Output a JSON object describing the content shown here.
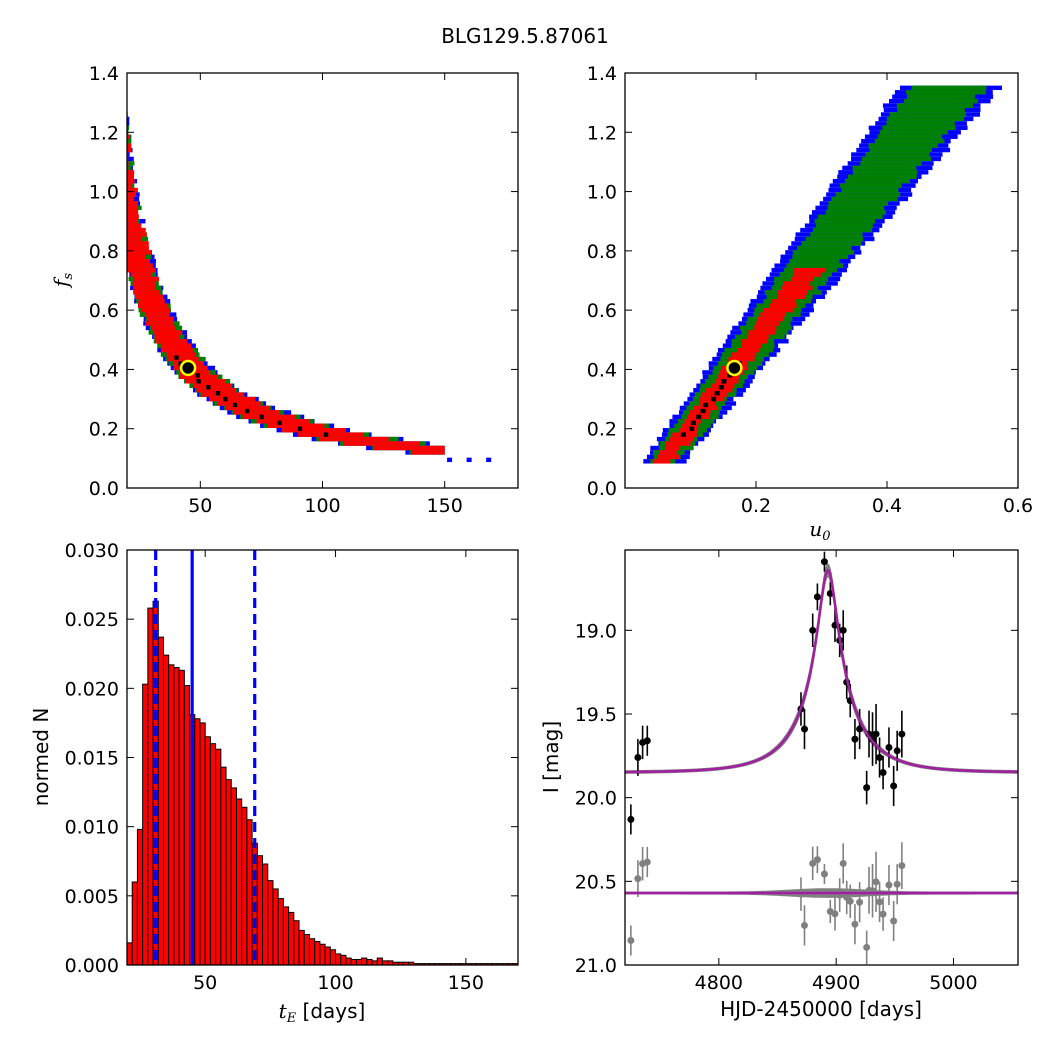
{
  "figure": {
    "title": "BLG129.5.87061",
    "background": "#ffffff"
  },
  "colors": {
    "blue": "#0000ff",
    "green": "#008000",
    "red": "#ff0000",
    "black": "#000000",
    "marker_edge": "#ffff00",
    "model": "#a020a0",
    "band": "#808080",
    "residual": "#808080",
    "hist_fill": "#ff0000"
  },
  "chart_data": [
    {
      "panel": "tE-fs",
      "type": "heatmap",
      "title": "",
      "xlabel": "",
      "ylabel": "f",
      "ylabel_sub": "s",
      "xlim": [
        20,
        180
      ],
      "ylim": [
        0.0,
        1.4
      ],
      "xticks": [
        50,
        100,
        150
      ],
      "yticks": [
        0.0,
        0.2,
        0.4,
        0.6,
        0.8,
        1.0,
        1.2,
        1.4
      ],
      "xtick_labels": [
        "50",
        "100",
        "150"
      ],
      "ytick_labels": [
        "0.0",
        "0.2",
        "0.4",
        "0.6",
        "0.8",
        "1.0",
        "1.2",
        "1.4"
      ],
      "relation": "fs ≈ 18.4 / tE",
      "confidence_regions": [
        "1sigma-red",
        "2sigma-green",
        "3sigma-blue"
      ],
      "tail_points": [
        {
          "x": 160,
          "y": 0.095
        },
        {
          "x": 168,
          "y": 0.095
        },
        {
          "x": 152,
          "y": 0.095
        }
      ],
      "best_fit": {
        "x": 45,
        "y": 0.405
      }
    },
    {
      "panel": "u0-fs",
      "type": "heatmap",
      "title": "",
      "xlabel": "u",
      "xlabel_sub": "0",
      "ylabel": "",
      "xlim": [
        0.0,
        0.6
      ],
      "ylim": [
        0.0,
        1.4
      ],
      "xticks": [
        0.2,
        0.4,
        0.6
      ],
      "yticks": [
        0.0,
        0.2,
        0.4,
        0.6,
        0.8,
        1.0,
        1.2,
        1.4
      ],
      "xtick_labels": [
        "0.2",
        "0.4",
        "0.6"
      ],
      "ytick_labels": [
        "0.0",
        "0.2",
        "0.4",
        "0.6",
        "0.8",
        "1.0",
        "1.2",
        "1.4"
      ],
      "relation": "u0 ≈ 0.025 + 0.36 * fs",
      "best_fit": {
        "x": 0.167,
        "y": 0.405
      }
    },
    {
      "panel": "tE-histogram",
      "type": "bar",
      "title": "",
      "xlabel": "t",
      "xlabel_sub": "E",
      "xlabel_suffix": " [days]",
      "ylabel": "normed N",
      "xlim": [
        20,
        170
      ],
      "ylim": [
        0.0,
        0.03
      ],
      "xticks": [
        50,
        100,
        150
      ],
      "yticks": [
        0.0,
        0.005,
        0.01,
        0.015,
        0.02,
        0.025,
        0.03
      ],
      "xtick_labels": [
        "50",
        "100",
        "150"
      ],
      "ytick_labels": [
        "0.000",
        "0.005",
        "0.010",
        "0.015",
        "0.020",
        "0.025",
        "0.030"
      ],
      "bin_start": 20,
      "bin_width": 2,
      "values": [
        0.0016,
        0.006,
        0.0098,
        0.0203,
        0.0258,
        0.0263,
        0.0237,
        0.0224,
        0.0217,
        0.0215,
        0.0213,
        0.0202,
        0.0181,
        0.0178,
        0.0175,
        0.0165,
        0.016,
        0.0156,
        0.0143,
        0.0134,
        0.0128,
        0.012,
        0.0114,
        0.0105,
        0.0088,
        0.0079,
        0.0073,
        0.0061,
        0.0055,
        0.0048,
        0.0042,
        0.0038,
        0.0032,
        0.0025,
        0.0022,
        0.0019,
        0.0017,
        0.0015,
        0.0013,
        0.0011,
        0.0008,
        0.0007,
        0.0005,
        0.0004,
        0.0004,
        0.0005,
        0.0004,
        0.0003,
        0.0005,
        0.0003,
        0.0003,
        0.0002,
        0.0002,
        0.0002,
        0.0002,
        0.0001,
        0.0001,
        0.0001,
        0.0001,
        0.0001,
        0.0001,
        0.0001,
        0.0001,
        0.0001,
        0.0001,
        0.0001,
        0.0001,
        0.0001,
        0.0001,
        0.0001,
        0.0001,
        0.0001,
        0.0001,
        0.0001,
        0.0001
      ],
      "vlines": [
        {
          "x": 45,
          "style": "solid"
        },
        {
          "x": 31,
          "style": "dashed"
        },
        {
          "x": 69,
          "style": "dashed"
        }
      ]
    },
    {
      "panel": "lightcurve",
      "type": "scatter",
      "title": "",
      "xlabel": "HJD-2450000 [days]",
      "ylabel": "I [mag]",
      "xlim": [
        4720,
        5055
      ],
      "ylim": [
        21.0,
        18.52
      ],
      "xticks": [
        4800,
        4900,
        5000
      ],
      "yticks": [
        19.0,
        19.5,
        20.0,
        20.5,
        21.0
      ],
      "xtick_labels": [
        "4800",
        "4900",
        "5000"
      ],
      "ytick_labels": [
        "19.0",
        "19.5",
        "20.0",
        "20.5",
        "21.0"
      ],
      "model": {
        "t0": 4893,
        "tE": 45,
        "u0": 0.167,
        "fs": 0.405,
        "baseline": 19.85
      },
      "residual_offset": 20.57,
      "points": [
        {
          "x": 4725,
          "y": 20.13,
          "err": 0.09
        },
        {
          "x": 4731,
          "y": 19.76,
          "err": 0.11
        },
        {
          "x": 4735,
          "y": 19.67,
          "err": 0.1
        },
        {
          "x": 4739,
          "y": 19.66,
          "err": 0.09
        },
        {
          "x": 4870,
          "y": 19.47,
          "err": 0.1
        },
        {
          "x": 4873,
          "y": 19.59,
          "err": 0.12
        },
        {
          "x": 4880,
          "y": 19.0,
          "err": 0.1
        },
        {
          "x": 4884,
          "y": 18.8,
          "err": 0.08
        },
        {
          "x": 4890,
          "y": 18.59,
          "err": 0.06
        },
        {
          "x": 4895,
          "y": 18.78,
          "err": 0.07
        },
        {
          "x": 4899,
          "y": 18.97,
          "err": 0.1
        },
        {
          "x": 4903,
          "y": 19.06,
          "err": 0.1
        },
        {
          "x": 4906,
          "y": 19.0,
          "err": 0.12
        },
        {
          "x": 4909,
          "y": 19.31,
          "err": 0.1
        },
        {
          "x": 4912,
          "y": 19.42,
          "err": 0.1
        },
        {
          "x": 4916,
          "y": 19.65,
          "err": 0.12
        },
        {
          "x": 4920,
          "y": 19.59,
          "err": 0.12
        },
        {
          "x": 4926,
          "y": 19.94,
          "err": 0.1
        },
        {
          "x": 4928,
          "y": 19.62,
          "err": 0.14
        },
        {
          "x": 4931,
          "y": 19.65,
          "err": 0.16
        },
        {
          "x": 4934,
          "y": 19.62,
          "err": 0.18
        },
        {
          "x": 4937,
          "y": 19.76,
          "err": 0.12
        },
        {
          "x": 4940,
          "y": 19.85,
          "err": 0.1
        },
        {
          "x": 4945,
          "y": 19.7,
          "err": 0.12
        },
        {
          "x": 4949,
          "y": 19.93,
          "err": 0.12
        },
        {
          "x": 4952,
          "y": 19.72,
          "err": 0.12
        },
        {
          "x": 4956,
          "y": 19.62,
          "err": 0.14
        }
      ]
    }
  ]
}
